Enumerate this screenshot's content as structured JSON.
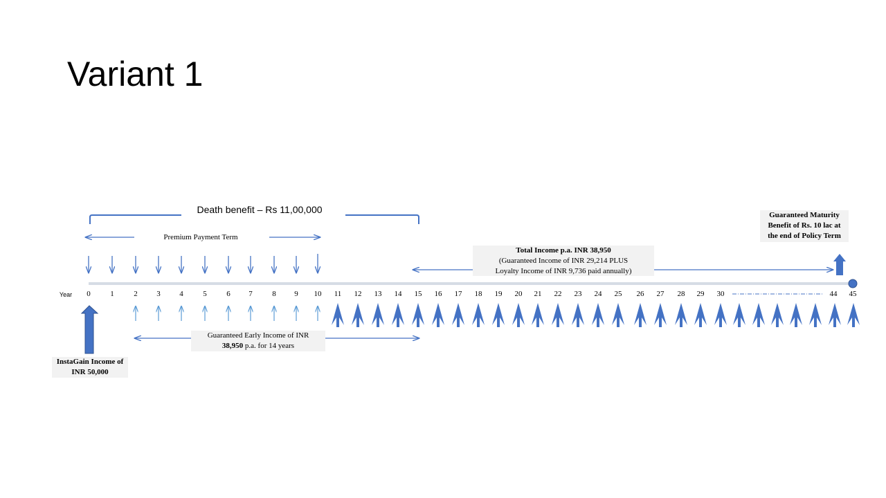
{
  "slide": {
    "title": "Variant 1",
    "death_benefit": "Death benefit – Rs 11,00,000",
    "premium_term": "Premium  Payment Term",
    "year_label": "Year",
    "years": [
      "0",
      "1",
      "2",
      "3",
      "4",
      "5",
      "6",
      "7",
      "8",
      "9",
      "10",
      "11",
      "12",
      "13",
      "14",
      "15",
      "16",
      "17",
      "18",
      "19",
      "20",
      "21",
      "22",
      "23",
      "24",
      "25",
      "26",
      "27",
      "28",
      "29",
      "30",
      "44",
      "45"
    ],
    "total_income": {
      "line1": "Total Income p.a. INR 38,950",
      "line2": "(Guaranteed Income of INR 29,214 PLUS",
      "line3": "Loyalty Income of INR 9,736 paid annually)"
    },
    "maturity": {
      "line1": "Guaranteed Maturity",
      "line2": "Benefit of Rs. 10 lac at",
      "line3": "the end of Policy Term"
    },
    "early_income": {
      "line1": "Guaranteed Early Income of INR",
      "line2_bold": "38,950",
      "line2_rest": " p.a. for 14 years"
    },
    "instagain": {
      "line1": "InstaGain Income of",
      "line2": "INR 50,000"
    },
    "colors": {
      "arrow": "#4472c4",
      "light_arrow": "#5b9bd5",
      "timeline": "#d6dce5"
    }
  }
}
